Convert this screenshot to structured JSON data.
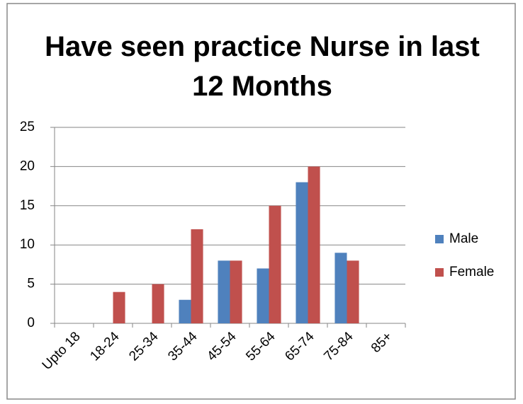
{
  "chart_data": {
    "type": "bar",
    "title": "Have seen practice Nurse in last 12 Months",
    "categories": [
      "Upto 18",
      "18-24",
      "25-34",
      "35-44",
      "45-54",
      "55-64",
      "65-74",
      "75-84",
      "85+"
    ],
    "series": [
      {
        "name": "Male",
        "color": "#4f81bd",
        "values": [
          0,
          0,
          0,
          3,
          8,
          7,
          18,
          9,
          0
        ]
      },
      {
        "name": "Female",
        "color": "#c0504d",
        "values": [
          0,
          4,
          5,
          12,
          8,
          15,
          20,
          8,
          0
        ]
      }
    ],
    "ylim": [
      0,
      25
    ],
    "yticks": [
      0,
      5,
      10,
      15,
      20,
      25
    ],
    "grid": true,
    "legend": "right"
  }
}
